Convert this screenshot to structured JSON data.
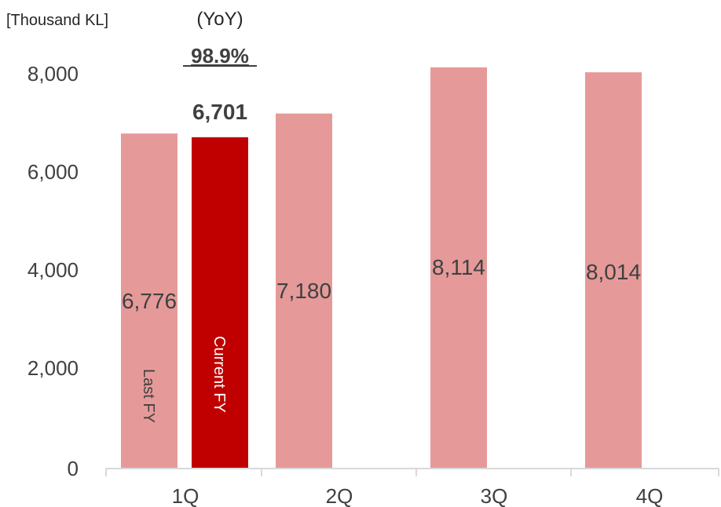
{
  "chart_data": {
    "type": "bar",
    "unit_label": "[Thousand KL]",
    "yoy_label": "(YoY)",
    "yoy_value": "98.9%",
    "categories": [
      "1Q",
      "2Q",
      "3Q",
      "4Q"
    ],
    "series": [
      {
        "name": "Last FY",
        "values": [
          6776,
          7180,
          8114,
          8014
        ],
        "value_labels": [
          "6,776",
          "7,180",
          "8,114",
          "8,014"
        ],
        "color": "#e59a99"
      },
      {
        "name": "Current FY",
        "values": [
          6701,
          null,
          null,
          null
        ],
        "value_labels": [
          "6,701",
          "",
          "",
          ""
        ],
        "color": "#c00000"
      }
    ],
    "y_ticks": [
      "8,000",
      "6,000",
      "4,000",
      "2,000",
      "0"
    ],
    "ylim": [
      0,
      8000
    ],
    "grid": false
  }
}
